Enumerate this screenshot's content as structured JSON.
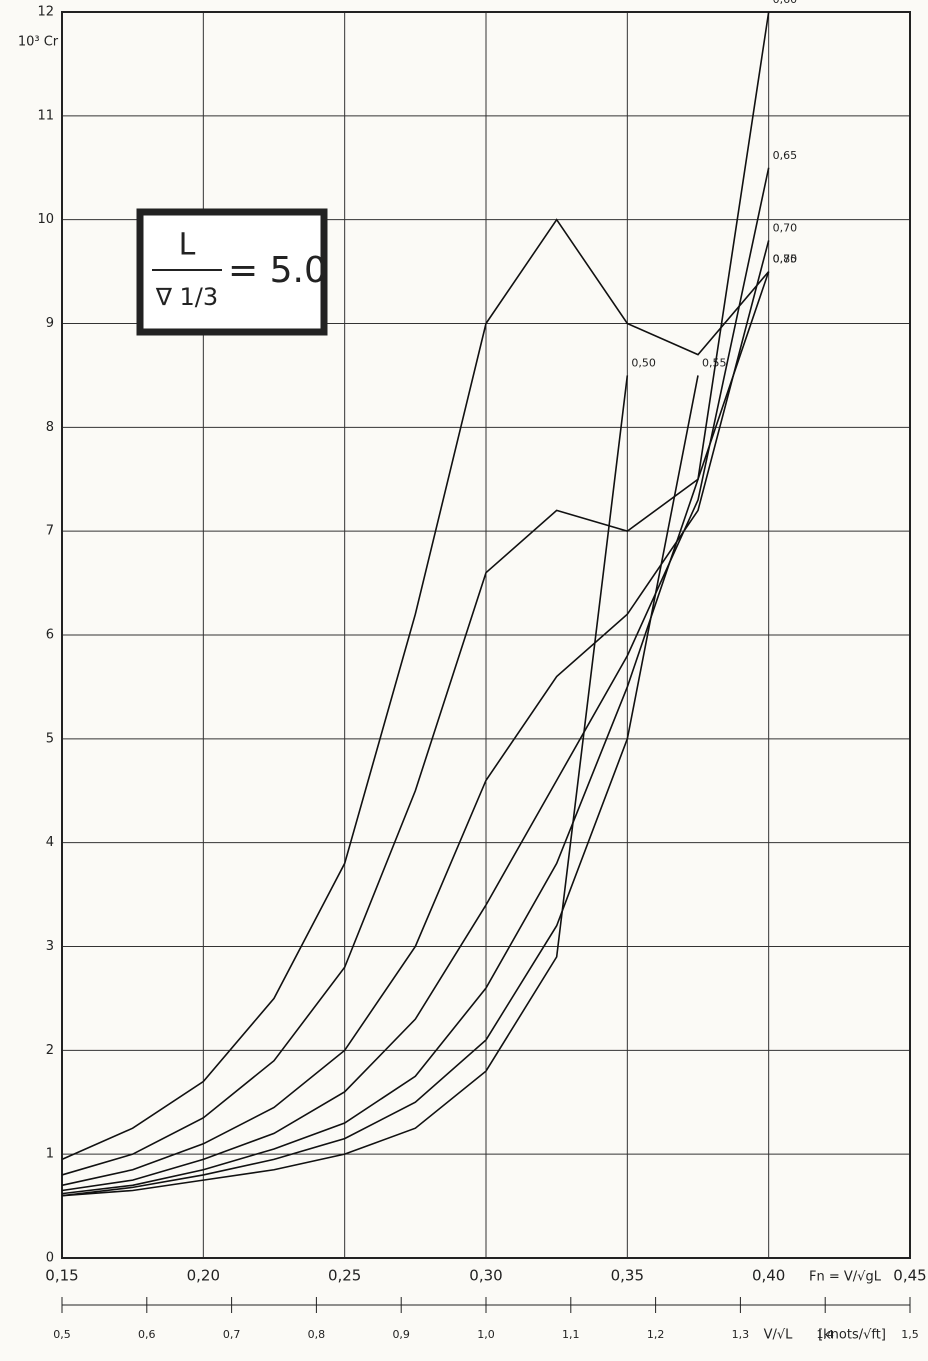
{
  "chart_data": {
    "type": "line",
    "y_label": "10³ Cr",
    "x_label": "Fn = V/√gL",
    "x2_label": "V/√L",
    "x2_unit": "[knots/√ft]",
    "annotation": {
      "numerator": "L",
      "denominator": "∇ 1/3",
      "value": "= 5.0"
    },
    "x": [
      0.15,
      0.175,
      0.2,
      0.225,
      0.25,
      0.275,
      0.3,
      0.325,
      0.35,
      0.375,
      0.4,
      0.425
    ],
    "series": [
      {
        "name": "0,50",
        "color": "#111111",
        "values": [
          0.6,
          0.65,
          0.75,
          0.85,
          1.0,
          1.25,
          1.8,
          2.9,
          8.5,
          null,
          null,
          null
        ]
      },
      {
        "name": "0,55",
        "color": "#111111",
        "values": [
          0.6,
          0.68,
          0.8,
          0.95,
          1.15,
          1.5,
          2.1,
          3.2,
          5.0,
          8.5,
          null,
          null
        ]
      },
      {
        "name": "0,60",
        "color": "#111111",
        "values": [
          0.62,
          0.7,
          0.85,
          1.05,
          1.3,
          1.75,
          2.6,
          3.8,
          5.5,
          7.5,
          12,
          null
        ]
      },
      {
        "name": "0,65",
        "color": "#111111",
        "values": [
          0.65,
          0.75,
          0.95,
          1.2,
          1.6,
          2.3,
          3.4,
          4.6,
          5.8,
          7.3,
          10.5,
          null
        ]
      },
      {
        "name": "0,70",
        "color": "#111111",
        "values": [
          0.7,
          0.85,
          1.1,
          1.45,
          2.0,
          3.0,
          4.6,
          5.6,
          6.2,
          7.2,
          9.8,
          null
        ]
      },
      {
        "name": "0,75",
        "color": "#111111",
        "values": [
          0.8,
          1.0,
          1.35,
          1.9,
          2.8,
          4.5,
          6.6,
          7.2,
          7.0,
          7.5,
          9.5,
          null
        ]
      },
      {
        "name": "0,80",
        "color": "#111111",
        "values": [
          0.95,
          1.25,
          1.7,
          2.5,
          3.8,
          6.2,
          9.0,
          10.0,
          9.0,
          8.7,
          9.5,
          null
        ]
      }
    ],
    "xlim": [
      0.15,
      0.45
    ],
    "xticks": [
      {
        "value": 0.15,
        "label": "0,15"
      },
      {
        "value": 0.2,
        "label": "0,20"
      },
      {
        "value": 0.25,
        "label": "0,25"
      },
      {
        "value": 0.3,
        "label": "0,30"
      },
      {
        "value": 0.35,
        "label": "0,35"
      },
      {
        "value": 0.4,
        "label": "0,40"
      },
      {
        "value": 0.45,
        "label": "0,45"
      }
    ],
    "ylim": [
      0,
      12
    ],
    "yticks": [
      0,
      1,
      2,
      3,
      4,
      5,
      6,
      7,
      8,
      9,
      10,
      11,
      12
    ],
    "x2lim": [
      0.5,
      1.5
    ],
    "x2ticks": [
      {
        "value": 0.5,
        "label": "0,5"
      },
      {
        "value": 0.6,
        "label": "0,6"
      },
      {
        "value": 0.7,
        "label": "0,7"
      },
      {
        "value": 0.8,
        "label": "0,8"
      },
      {
        "value": 0.9,
        "label": "0,9"
      },
      {
        "value": 1.0,
        "label": "1,0"
      },
      {
        "value": 1.1,
        "label": "1,1"
      },
      {
        "value": 1.2,
        "label": "1,2"
      },
      {
        "value": 1.3,
        "label": "1,3"
      },
      {
        "value": 1.4,
        "label": "1,4"
      },
      {
        "value": 1.5,
        "label": "1,5"
      }
    ],
    "grid": true
  }
}
